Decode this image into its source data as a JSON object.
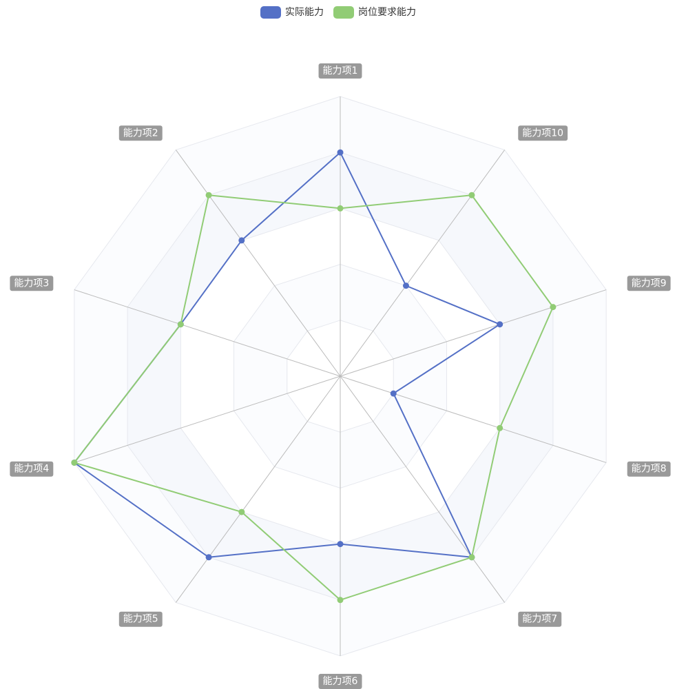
{
  "chart_data": {
    "type": "radar",
    "indicators": [
      "能力项1",
      "能力项2",
      "能力项3",
      "能力项4",
      "能力项5",
      "能力项6",
      "能力项7",
      "能力项8",
      "能力项9",
      "能力项10"
    ],
    "max": 5,
    "series": [
      {
        "name": "实际能力",
        "values": [
          4,
          3,
          3,
          5,
          4,
          3,
          4,
          1,
          3,
          2
        ],
        "color": "#5470c6"
      },
      {
        "name": "岗位要求能力",
        "values": [
          3,
          4,
          3,
          5,
          3,
          4,
          4,
          3,
          4,
          4
        ],
        "color": "#91cc75"
      }
    ],
    "legend_position": "top-center",
    "split_area_colors": [
      "#ffffff",
      "#f6f8fc",
      "#fbfcfe"
    ],
    "split_line_color": "#e6e8ee",
    "axis_line_color": "#bbbbbb",
    "indicator_bg_color": "#999999"
  }
}
